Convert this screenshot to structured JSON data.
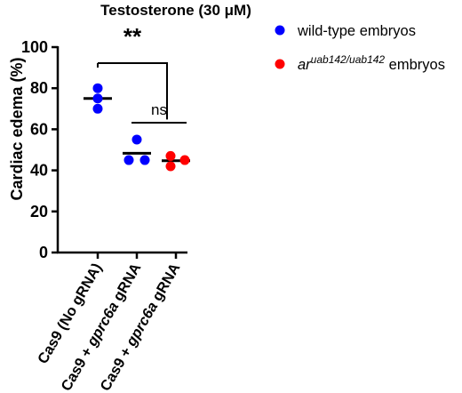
{
  "chart_data": {
    "type": "scatter",
    "title": "Testosterone (30 μM)",
    "ylabel": "Cardiac edema (%)",
    "xlabel": "",
    "ylim": [
      0,
      100
    ],
    "yticks": [
      0,
      20,
      40,
      60,
      80,
      100
    ],
    "grid": false,
    "legend_position": "right",
    "categories": [
      {
        "prefix": "Cas9 (No gRNA)",
        "italic": "",
        "suffix": ""
      },
      {
        "prefix": "Cas9 + ",
        "italic": "gprc6a",
        "suffix": " gRNA"
      },
      {
        "prefix": "Cas9 + ",
        "italic": "gprc6a",
        "suffix": " gRNA"
      }
    ],
    "series": [
      {
        "name": "wild-type embryos",
        "color": "#0000ff",
        "points": [
          {
            "category": 0,
            "y": 80
          },
          {
            "category": 0,
            "y": 75
          },
          {
            "category": 0,
            "y": 70
          },
          {
            "category": 1,
            "y": 55
          },
          {
            "category": 1,
            "y": 45
          },
          {
            "category": 1,
            "y": 45
          }
        ]
      },
      {
        "name_prefix": "ar",
        "name_sup": "uab142/uab142",
        "name_suffix": " embryos",
        "color": "#ff0000",
        "points": [
          {
            "category": 2,
            "y": 47
          },
          {
            "category": 2,
            "y": 45
          },
          {
            "category": 2,
            "y": 42
          }
        ]
      }
    ],
    "means": [
      75,
      48.3,
      44.7
    ],
    "significance": [
      {
        "from": 0,
        "to": 1,
        "label": "**"
      },
      {
        "from": 1,
        "to": 2,
        "label": "ns"
      }
    ]
  }
}
